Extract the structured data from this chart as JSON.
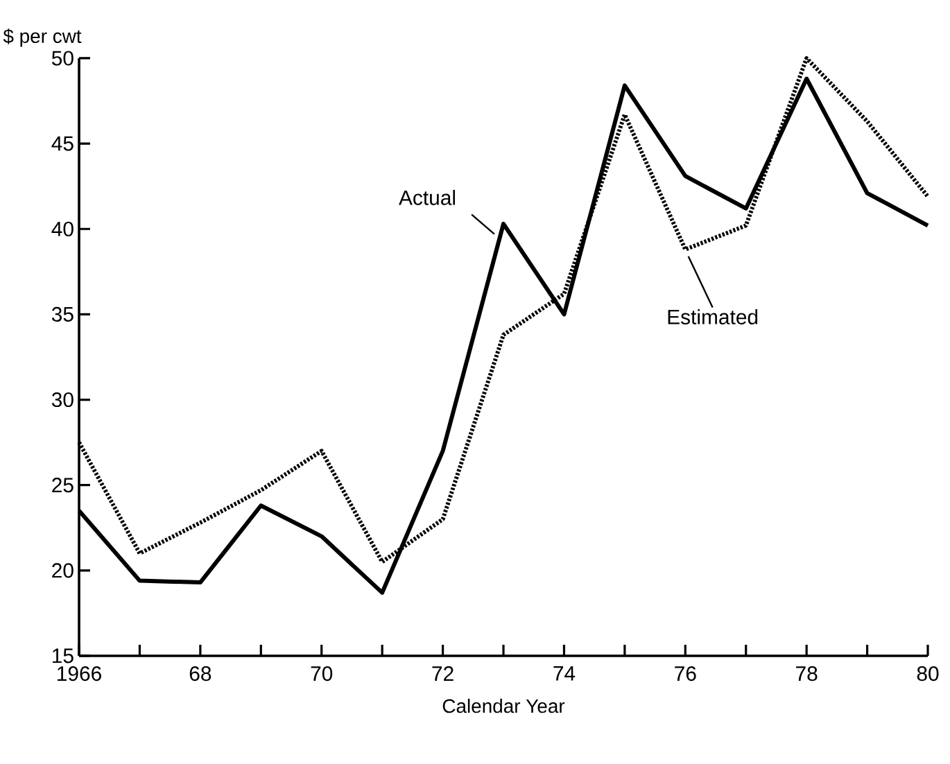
{
  "chart_data": {
    "type": "line",
    "ylabel": "$ per cwt",
    "xlabel": "Calendar Year",
    "x": [
      1966,
      1967,
      1968,
      1969,
      1970,
      1971,
      1972,
      1973,
      1974,
      1975,
      1976,
      1977,
      1978,
      1979,
      1980
    ],
    "series": [
      {
        "name": "Actual",
        "color": "#000000",
        "line_style": "solid",
        "values": [
          23.5,
          19.4,
          19.3,
          23.8,
          22.0,
          18.7,
          27.0,
          40.3,
          35.0,
          48.4,
          43.1,
          41.2,
          48.8,
          42.1,
          40.2
        ]
      },
      {
        "name": "Estimated",
        "color": "#000000",
        "line_style": "dotted",
        "values": [
          27.5,
          21.0,
          22.8,
          24.7,
          27.0,
          20.5,
          23.0,
          33.8,
          36.2,
          46.7,
          38.8,
          40.2,
          50.0,
          46.3,
          41.9
        ]
      }
    ],
    "xlim": [
      1966,
      1980
    ],
    "xticks": [
      {
        "value": 1966,
        "label": "1966"
      },
      {
        "value": 1967,
        "label": null
      },
      {
        "value": 1968,
        "label": "68"
      },
      {
        "value": 1969,
        "label": null
      },
      {
        "value": 1970,
        "label": "70"
      },
      {
        "value": 1971,
        "label": null
      },
      {
        "value": 1972,
        "label": "72"
      },
      {
        "value": 1973,
        "label": null
      },
      {
        "value": 1974,
        "label": "74"
      },
      {
        "value": 1975,
        "label": null
      },
      {
        "value": 1976,
        "label": "76"
      },
      {
        "value": 1977,
        "label": null
      },
      {
        "value": 1978,
        "label": "78"
      },
      {
        "value": 1979,
        "label": null
      },
      {
        "value": 1980,
        "label": "80"
      }
    ],
    "ylim": [
      15,
      50
    ],
    "yticks": [
      15,
      20,
      25,
      30,
      35,
      40,
      45,
      50
    ],
    "grid": false,
    "legend": false
  }
}
